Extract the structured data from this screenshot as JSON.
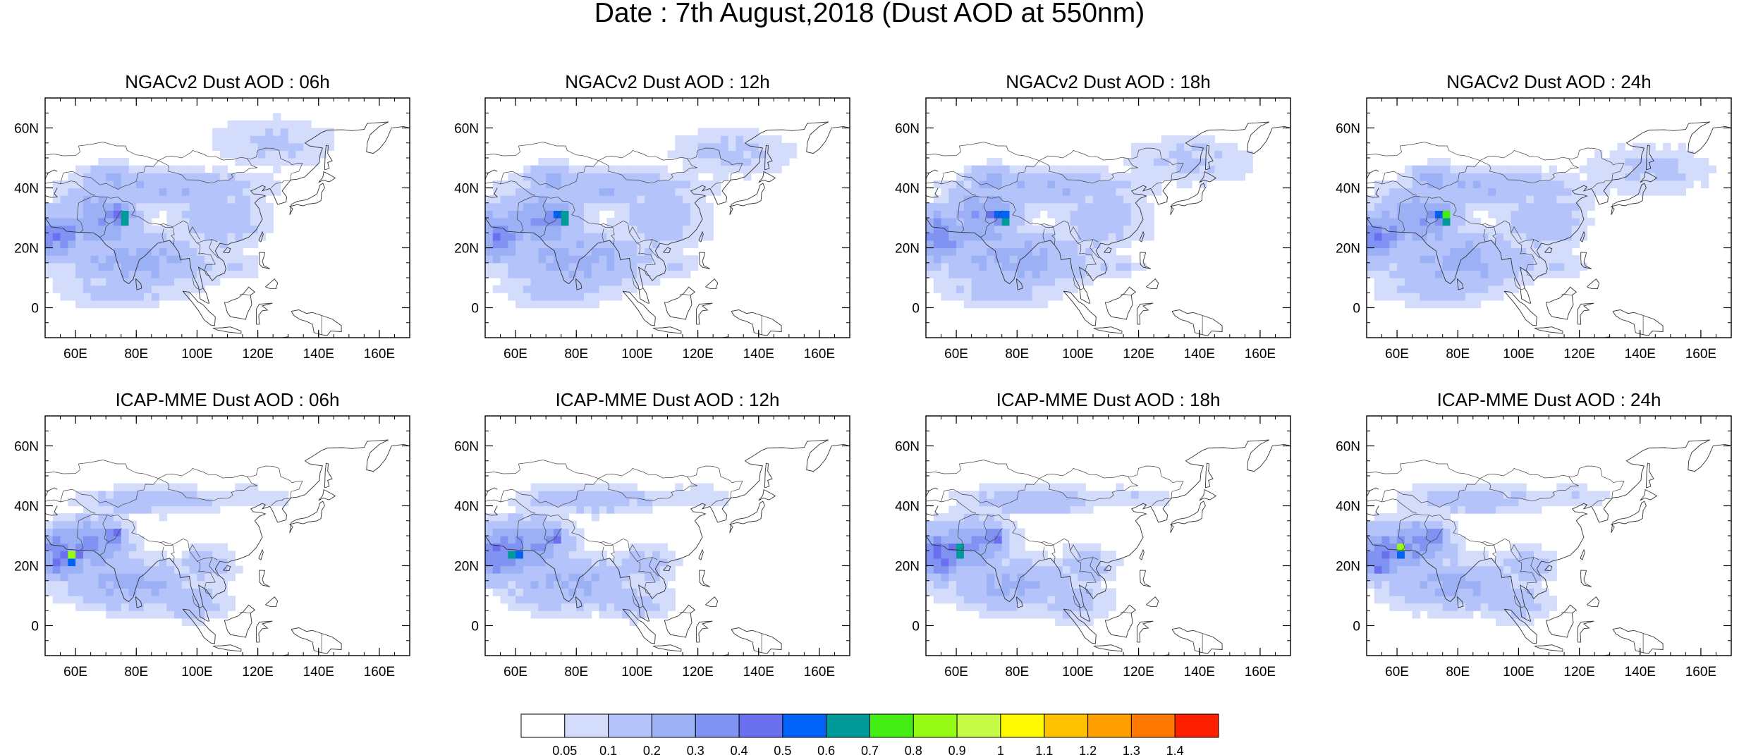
{
  "figure": {
    "title": "Date : 7th August,2018 (Dust AOD at 550nm)"
  },
  "axes": {
    "lon_range": [
      50,
      170
    ],
    "lat_range": [
      -10,
      70
    ],
    "lon_ticks": [
      60,
      80,
      100,
      120,
      140,
      160
    ],
    "lon_tick_labels": [
      "60E",
      "80E",
      "100E",
      "120E",
      "140E",
      "160E"
    ],
    "lat_ticks": [
      0,
      20,
      40,
      60
    ],
    "lat_tick_labels": [
      "0",
      "20N",
      "40N",
      "60N"
    ]
  },
  "panels": [
    {
      "title": "NGACv2 Dust AOD : 06h",
      "model": "NGAC",
      "step": 0
    },
    {
      "title": "NGACv2 Dust AOD : 12h",
      "model": "NGAC",
      "step": 1
    },
    {
      "title": "NGACv2 Dust AOD : 18h",
      "model": "NGAC",
      "step": 2
    },
    {
      "title": "NGACv2 Dust AOD : 24h",
      "model": "NGAC",
      "step": 3
    },
    {
      "title": "ICAP-MME Dust AOD : 06h",
      "model": "ICAP",
      "step": 0
    },
    {
      "title": "ICAP-MME Dust AOD : 12h",
      "model": "ICAP",
      "step": 1
    },
    {
      "title": "ICAP-MME Dust AOD : 18h",
      "model": "ICAP",
      "step": 2
    },
    {
      "title": "ICAP-MME Dust AOD : 24h",
      "model": "ICAP",
      "step": 3
    }
  ],
  "colorbar": {
    "labels": [
      "0.05",
      "0.1",
      "0.2",
      "0.3",
      "0.4",
      "0.5",
      "0.6",
      "0.7",
      "0.8",
      "0.9",
      "1",
      "1.1",
      "1.2",
      "1.3",
      "1.4"
    ],
    "colors": [
      "#ffffff",
      "#d4dcfc",
      "#b4c4fa",
      "#9cb0f6",
      "#8092f2",
      "#6a70ee",
      "#0062f6",
      "#009a98",
      "#44ee14",
      "#96fa14",
      "#c6fc48",
      "#fffa00",
      "#ffc200",
      "#ffa000",
      "#ff7800",
      "#ff2000"
    ]
  }
}
